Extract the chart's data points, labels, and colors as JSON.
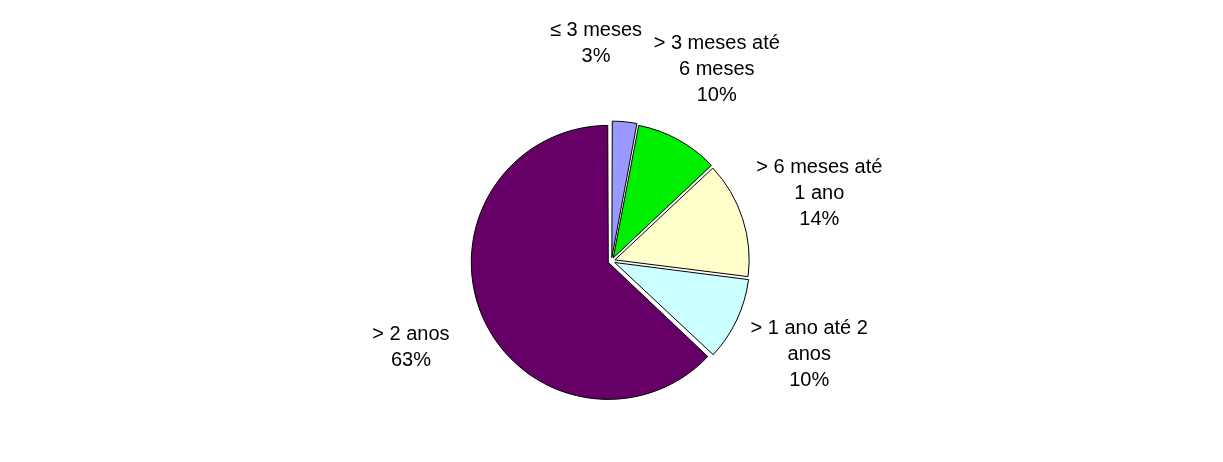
{
  "chart_data": {
    "type": "pie",
    "categories": [
      "≤  3 meses",
      "> 3 meses até 6 meses",
      "> 6 meses até 1 ano",
      "> 1 ano até 2 anos",
      ">  2 anos"
    ],
    "values": [
      3,
      10,
      14,
      10,
      63
    ],
    "value_labels": [
      "3%",
      "10%",
      "14%",
      "10%",
      "63%"
    ],
    "colors": [
      "#9999ff",
      "#00ee00",
      "#ffffcc",
      "#ccffff",
      "#660066"
    ],
    "legend": false
  }
}
